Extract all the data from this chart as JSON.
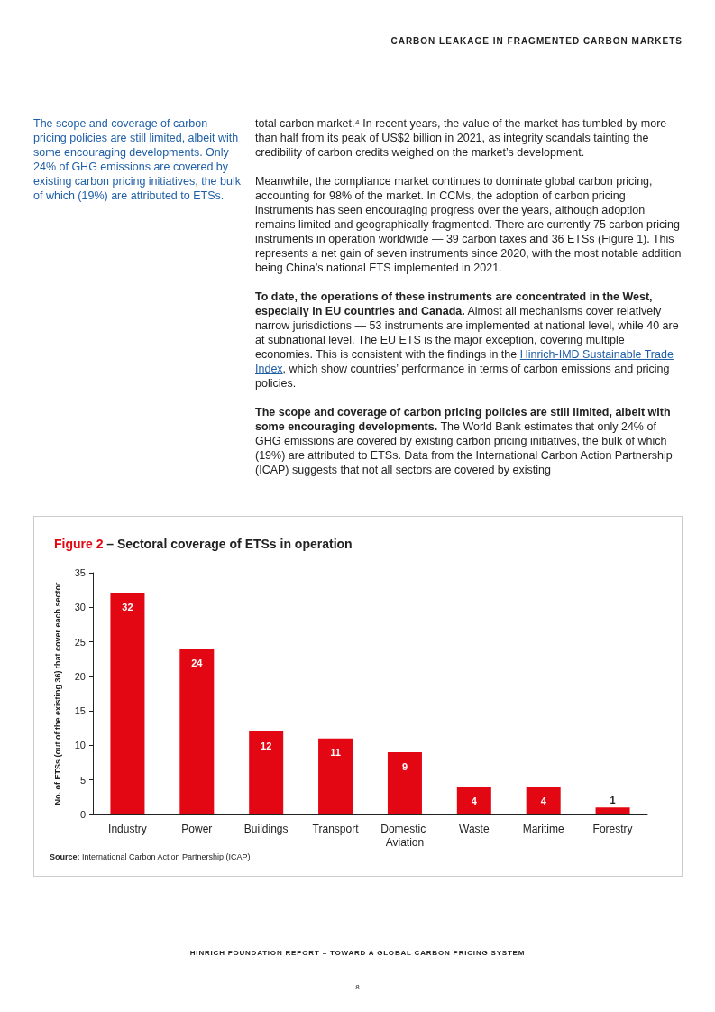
{
  "chart_data": {
    "type": "bar",
    "title": "Figure 2 – Sectoral coverage of ETSs in operation",
    "ylabel": "No. of ETSs (out of the existing 36) that cover each sector",
    "categories": [
      "Industry",
      "Power",
      "Buildings",
      "Transport",
      "Domestic Aviation",
      "Waste",
      "Maritime",
      "Forestry"
    ],
    "values": [
      32,
      24,
      12,
      11,
      9,
      4,
      4,
      1
    ],
    "color": "#e30613",
    "ylim": [
      0,
      35
    ],
    "yticks": [
      0,
      5,
      10,
      15,
      20,
      25,
      30,
      35
    ],
    "grid": false,
    "data_labels": true,
    "annotations": [
      "CARBON LEAKAGE IN FRAGMENTED CARBON MARKETS",
      "The scope and coverage of carbon pricing policies are still limited, albeit with some encouraging developments. Only 24% of GHG emissions are covered by existing carbon pricing initiatives, the bulk of which (19%) are attributed to ETSs.",
      "total carbon market.⁴ In recent years, the value of the market has tumbled by more than half from its peak of US$2 billion in 2021, as integrity scandals tainting the credibility of carbon credits weighed on the market’s development.",
      "Meanwhile, the compliance market continues to dominate global carbon pricing, accounting for 98% of the market. In CCMs, the adoption of carbon pricing instruments has seen encouraging progress over the years, although adoption remains limited and geographically fragmented. There are currently 75 carbon pricing instruments in operation worldwide — 39 carbon taxes and 36 ETSs (Figure 1). This represents a net gain of seven instruments since 2020, with the most notable addition being China’s national ETS implemented in 2021.",
      "To date, the operations of these instruments are concentrated in the West, especially in EU countries and Canada.",
      " Almost all mechanisms cover relatively narrow jurisdictions — 53 instruments are implemented at national level, while 40 are at subnational level. The EU ETS is the major exception, covering multiple economies. This is consistent with the findings in the ",
      "Hinrich-IMD Sustainable Trade Index",
      ", which show countries’ performance in terms of carbon emissions and pricing policies.",
      "The scope and coverage of carbon pricing policies are still limited, albeit with some encouraging developments.",
      " The World Bank estimates that only 24% of GHG emissions are covered by existing carbon pricing initiatives, the bulk of which (19%) are attributed to ETSs. Data from the International Carbon Action Partnership (ICAP) suggests that not all sectors are covered by existing",
      "Source: International Carbon Action Partnership (ICAP)",
      "HINRICH FOUNDATION REPORT – TOWARD A GLOBAL CARBON PRICING SYSTEM",
      "8"
    ]
  }
}
